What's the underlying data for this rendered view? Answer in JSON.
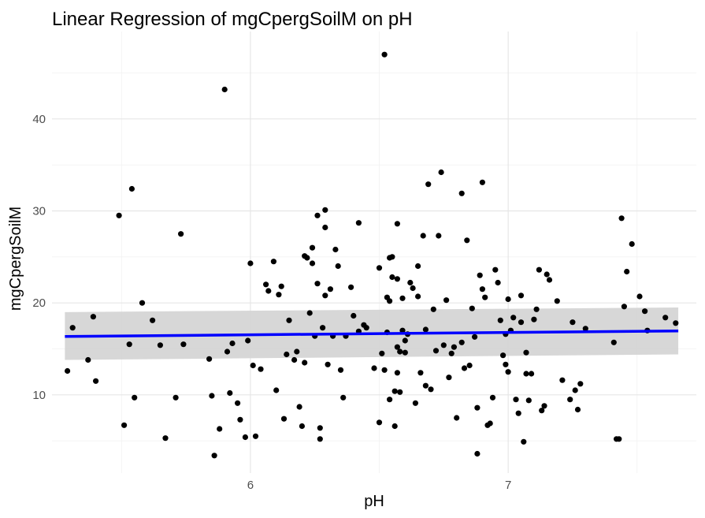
{
  "chart_data": {
    "type": "scatter",
    "title": "Linear Regression of mgCpergSoilM on pH",
    "xlabel": "pH",
    "ylabel": "mgCpergSoilM",
    "xlim": [
      5.23,
      7.73
    ],
    "ylim": [
      1.5,
      49.5
    ],
    "x_ticks": [
      6,
      7
    ],
    "x_tick_labels": [
      "6",
      "7"
    ],
    "y_ticks": [
      10,
      20,
      30,
      40
    ],
    "y_tick_labels": [
      "10",
      "20",
      "30",
      "40"
    ],
    "grid": true,
    "legend": "none",
    "colors": {
      "points": "#000000",
      "fit_line": "#0000ff",
      "confidence_band": "#d3d3d3"
    },
    "regression": {
      "x": [
        5.28,
        7.66
      ],
      "y": [
        16.35,
        16.95
      ],
      "ci_lower": [
        13.8,
        14.4
      ],
      "ci_upper": [
        19.0,
        19.5
      ]
    },
    "points": [
      [
        5.29,
        12.6
      ],
      [
        5.31,
        17.3
      ],
      [
        5.37,
        13.8
      ],
      [
        5.39,
        18.5
      ],
      [
        5.4,
        11.5
      ],
      [
        5.49,
        29.5
      ],
      [
        5.51,
        6.7
      ],
      [
        5.53,
        15.5
      ],
      [
        5.54,
        32.4
      ],
      [
        5.55,
        9.7
      ],
      [
        5.58,
        20.0
      ],
      [
        5.62,
        18.1
      ],
      [
        5.65,
        15.4
      ],
      [
        5.67,
        5.3
      ],
      [
        5.71,
        9.7
      ],
      [
        5.73,
        27.5
      ],
      [
        5.74,
        15.5
      ],
      [
        5.84,
        13.9
      ],
      [
        5.85,
        9.9
      ],
      [
        5.86,
        3.4
      ],
      [
        5.88,
        6.3
      ],
      [
        5.9,
        43.2
      ],
      [
        5.91,
        14.7
      ],
      [
        5.92,
        10.2
      ],
      [
        5.93,
        15.6
      ],
      [
        5.95,
        9.1
      ],
      [
        5.96,
        7.3
      ],
      [
        5.98,
        5.4
      ],
      [
        5.99,
        15.9
      ],
      [
        6.0,
        24.3
      ],
      [
        6.01,
        13.2
      ],
      [
        6.02,
        5.5
      ],
      [
        6.04,
        12.8
      ],
      [
        6.06,
        22.0
      ],
      [
        6.07,
        21.3
      ],
      [
        6.09,
        24.5
      ],
      [
        6.1,
        10.5
      ],
      [
        6.11,
        20.9
      ],
      [
        6.12,
        21.8
      ],
      [
        6.13,
        7.4
      ],
      [
        6.14,
        14.4
      ],
      [
        6.15,
        18.1
      ],
      [
        6.17,
        13.8
      ],
      [
        6.18,
        14.7
      ],
      [
        6.19,
        8.7
      ],
      [
        6.2,
        6.6
      ],
      [
        6.21,
        13.5
      ],
      [
        6.21,
        25.1
      ],
      [
        6.22,
        24.9
      ],
      [
        6.23,
        18.9
      ],
      [
        6.24,
        26.0
      ],
      [
        6.24,
        24.3
      ],
      [
        6.25,
        16.4
      ],
      [
        6.26,
        29.5
      ],
      [
        6.26,
        22.1
      ],
      [
        6.27,
        6.4
      ],
      [
        6.27,
        5.2
      ],
      [
        6.28,
        17.3
      ],
      [
        6.29,
        28.2
      ],
      [
        6.29,
        20.8
      ],
      [
        6.29,
        30.1
      ],
      [
        6.3,
        13.3
      ],
      [
        6.31,
        21.5
      ],
      [
        6.32,
        16.4
      ],
      [
        6.33,
        25.8
      ],
      [
        6.34,
        24.0
      ],
      [
        6.35,
        12.7
      ],
      [
        6.36,
        9.7
      ],
      [
        6.37,
        16.4
      ],
      [
        6.39,
        21.7
      ],
      [
        6.4,
        18.6
      ],
      [
        6.42,
        28.7
      ],
      [
        6.42,
        16.9
      ],
      [
        6.44,
        17.6
      ],
      [
        6.45,
        17.3
      ],
      [
        6.48,
        12.9
      ],
      [
        6.5,
        23.8
      ],
      [
        6.5,
        7.0
      ],
      [
        6.51,
        14.5
      ],
      [
        6.52,
        12.7
      ],
      [
        6.53,
        16.8
      ],
      [
        6.54,
        9.5
      ],
      [
        6.54,
        24.9
      ],
      [
        6.55,
        25.0
      ],
      [
        6.56,
        6.6
      ],
      [
        6.57,
        15.2
      ],
      [
        6.57,
        12.4
      ],
      [
        6.58,
        14.7
      ],
      [
        6.52,
        47.0
      ],
      [
        6.53,
        20.6
      ],
      [
        6.54,
        20.2
      ],
      [
        6.55,
        22.8
      ],
      [
        6.56,
        10.4
      ],
      [
        6.57,
        22.6
      ],
      [
        6.57,
        28.6
      ],
      [
        6.58,
        10.3
      ],
      [
        6.59,
        20.5
      ],
      [
        6.59,
        17.0
      ],
      [
        6.6,
        15.9
      ],
      [
        6.6,
        14.6
      ],
      [
        6.61,
        16.6
      ],
      [
        6.62,
        22.2
      ],
      [
        6.63,
        21.6
      ],
      [
        6.64,
        9.1
      ],
      [
        6.65,
        20.7
      ],
      [
        6.65,
        24.0
      ],
      [
        6.66,
        12.4
      ],
      [
        6.67,
        27.3
      ],
      [
        6.68,
        11.0
      ],
      [
        6.68,
        17.1
      ],
      [
        6.69,
        32.9
      ],
      [
        6.7,
        10.6
      ],
      [
        6.71,
        19.3
      ],
      [
        6.72,
        14.8
      ],
      [
        6.73,
        27.3
      ],
      [
        6.74,
        34.2
      ],
      [
        6.75,
        15.4
      ],
      [
        6.76,
        20.3
      ],
      [
        6.77,
        11.9
      ],
      [
        6.78,
        14.5
      ],
      [
        6.79,
        15.2
      ],
      [
        6.8,
        7.5
      ],
      [
        6.82,
        15.7
      ],
      [
        6.82,
        31.9
      ],
      [
        6.83,
        12.9
      ],
      [
        6.84,
        26.8
      ],
      [
        6.85,
        13.2
      ],
      [
        6.86,
        19.4
      ],
      [
        6.87,
        16.3
      ],
      [
        6.88,
        8.6
      ],
      [
        6.89,
        23.0
      ],
      [
        6.9,
        33.1
      ],
      [
        6.9,
        21.5
      ],
      [
        6.91,
        20.6
      ],
      [
        6.92,
        6.7
      ],
      [
        6.93,
        6.9
      ],
      [
        6.94,
        9.7
      ],
      [
        6.95,
        23.6
      ],
      [
        6.96,
        22.2
      ],
      [
        6.97,
        18.1
      ],
      [
        6.98,
        14.3
      ],
      [
        6.99,
        16.6
      ],
      [
        6.99,
        13.3
      ],
      [
        7.0,
        12.5
      ],
      [
        7.0,
        20.4
      ],
      [
        7.01,
        17.0
      ],
      [
        7.02,
        18.4
      ],
      [
        6.88,
        3.6
      ],
      [
        7.03,
        9.5
      ],
      [
        7.04,
        8.0
      ],
      [
        7.05,
        17.9
      ],
      [
        7.05,
        20.8
      ],
      [
        7.06,
        4.9
      ],
      [
        7.07,
        14.6
      ],
      [
        7.07,
        12.3
      ],
      [
        7.08,
        9.4
      ],
      [
        7.09,
        12.3
      ],
      [
        7.1,
        18.2
      ],
      [
        7.11,
        19.3
      ],
      [
        7.12,
        23.6
      ],
      [
        7.13,
        8.3
      ],
      [
        7.14,
        8.8
      ],
      [
        7.15,
        23.1
      ],
      [
        7.16,
        22.5
      ],
      [
        7.19,
        20.2
      ],
      [
        7.21,
        11.6
      ],
      [
        7.24,
        9.5
      ],
      [
        7.25,
        17.9
      ],
      [
        7.26,
        10.5
      ],
      [
        7.27,
        8.4
      ],
      [
        7.28,
        11.2
      ],
      [
        7.3,
        17.2
      ],
      [
        7.41,
        15.7
      ],
      [
        7.42,
        5.2
      ],
      [
        7.43,
        5.2
      ],
      [
        7.44,
        29.2
      ],
      [
        7.45,
        19.6
      ],
      [
        7.46,
        23.4
      ],
      [
        7.48,
        26.4
      ],
      [
        7.51,
        20.7
      ],
      [
        7.53,
        19.1
      ],
      [
        7.54,
        17.0
      ],
      [
        7.61,
        18.4
      ],
      [
        7.65,
        17.8
      ]
    ]
  }
}
